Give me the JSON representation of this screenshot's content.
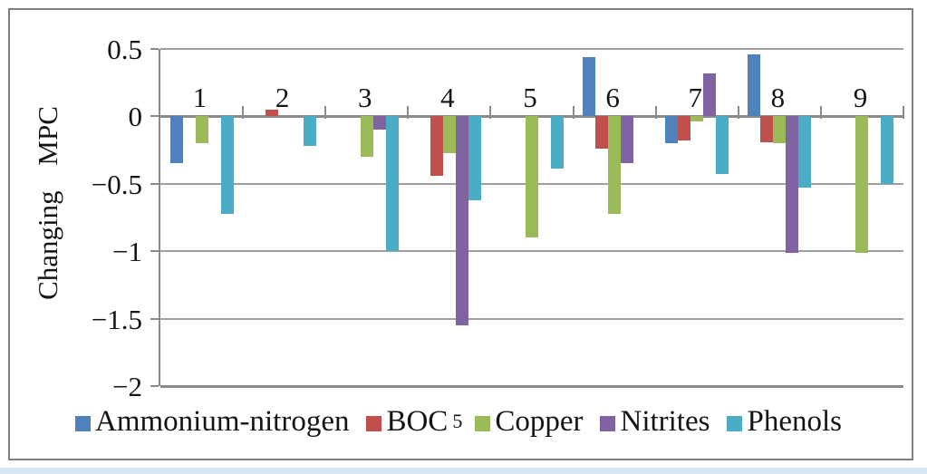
{
  "figure": {
    "background": "#ffffff",
    "border_color": "#7f7f7f",
    "bottom_strip_color": "#d9e7f3"
  },
  "legend": {
    "items": [
      {
        "label": "Ammonium-nitrogen",
        "sub": "",
        "color": "#4F81BD"
      },
      {
        "label": "BOC",
        "sub": "5",
        "color": "#C0504D"
      },
      {
        "label": "Copper",
        "sub": "",
        "color": "#9BBB59"
      },
      {
        "label": "Nitrites",
        "sub": "",
        "color": "#8064A2"
      },
      {
        "label": "Phenols",
        "sub": "",
        "color": "#4BACC6"
      }
    ]
  },
  "chart_data": {
    "type": "bar",
    "title": "",
    "xlabel": "",
    "ylabel": "Changing MPC",
    "categories": [
      "1",
      "2",
      "3",
      "4",
      "5",
      "6",
      "7",
      "8",
      "9"
    ],
    "series": [
      {
        "name": "Ammonium-nitrogen",
        "color": "#4F81BD",
        "values": [
          -0.35,
          0,
          0,
          0,
          0,
          0.44,
          -0.2,
          0.46,
          0
        ]
      },
      {
        "name": "BOC5",
        "color": "#C0504D",
        "values": [
          0,
          0.05,
          0,
          -0.44,
          0,
          -0.24,
          -0.18,
          -0.19,
          0
        ]
      },
      {
        "name": "Copper",
        "color": "#9BBB59",
        "values": [
          -0.2,
          0,
          -0.3,
          -0.27,
          -0.9,
          -0.72,
          -0.04,
          -0.2,
          -1.01
        ]
      },
      {
        "name": "Nitrites",
        "color": "#8064A2",
        "values": [
          0,
          0,
          -0.1,
          -1.55,
          0,
          -0.35,
          0.32,
          -1.01,
          0
        ]
      },
      {
        "name": "Phenols",
        "color": "#4BACC6",
        "values": [
          -0.72,
          -0.22,
          -1.0,
          -0.62,
          -0.39,
          0,
          -0.43,
          -0.53,
          -0.5
        ]
      }
    ],
    "ylim": [
      -2,
      0.5
    ],
    "yticks": [
      0.5,
      0,
      -0.5,
      -1,
      -1.5,
      -2
    ],
    "ytick_labels": [
      "0.5",
      "0",
      "−0.5",
      "−1",
      "−1.5",
      "−2"
    ],
    "grid": true,
    "legend_position": "bottom",
    "gridline_color": "#9e9e9e",
    "axis_color": "#8a8a8a"
  }
}
